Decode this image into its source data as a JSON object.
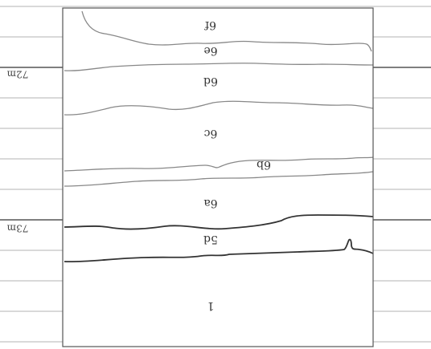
{
  "section": {
    "depth_labels": [
      "72m",
      "73m"
    ],
    "layers": [
      "6f",
      "6e",
      "6d",
      "6c",
      "6b",
      "6a",
      "5d",
      "1"
    ]
  }
}
